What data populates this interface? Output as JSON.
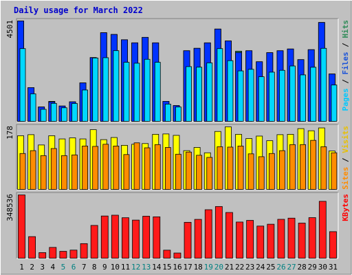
{
  "title": "Daily usage for March 2022",
  "legend": {
    "panel1": [
      {
        "label": "Pages",
        "color": "#00c8ff"
      },
      {
        "sep": " / ",
        "color": "#000000"
      },
      {
        "label": "Files",
        "color": "#1a53d9"
      },
      {
        "sep": " / ",
        "color": "#000000"
      },
      {
        "label": "Hits",
        "color": "#2e8b57"
      }
    ],
    "panel2": [
      {
        "label": "Sites",
        "color": "#ff8c00"
      },
      {
        "sep": " / ",
        "color": "#000000"
      },
      {
        "label": "Visits",
        "color": "#e8c000"
      }
    ],
    "panel3": [
      {
        "label": "KBytes",
        "color": "#ff0000"
      }
    ]
  },
  "colors": {
    "page_bg": "#c0c0c0",
    "plot_bg": "#c0c0c0",
    "hits": "#2e8b57",
    "files": "#0033ff",
    "pages": "#00d8ff",
    "visits": "#ffff00",
    "sites": "#ff8c00",
    "kbytes": "#ff1a1a",
    "weekend_label": "#008080",
    "weekday_label": "#000000",
    "title": "#0000cc"
  },
  "chart_data": [
    {
      "type": "bar",
      "panel": "hits-files-pages",
      "ymax_label": "4501",
      "ymax": 4501,
      "categories": [
        "1",
        "2",
        "3",
        "4",
        "5",
        "6",
        "7",
        "8",
        "9",
        "10",
        "11",
        "12",
        "13",
        "14",
        "15",
        "16",
        "17",
        "18",
        "19",
        "20",
        "21",
        "22",
        "23",
        "24",
        "25",
        "26",
        "27",
        "28",
        "29",
        "30",
        "31"
      ],
      "weekend_days": [
        "5",
        "6",
        "12",
        "13",
        "19",
        "20",
        "26",
        "27"
      ],
      "series": [
        {
          "name": "Hits",
          "values": [
            4501,
            1533,
            671,
            921,
            713,
            900,
            1743,
            2871,
            3978,
            3900,
            3664,
            3527,
            3771,
            3527,
            921,
            733,
            3176,
            3284,
            3527,
            4141,
            3612,
            3156,
            3176,
            2686,
            3089,
            3176,
            3253,
            2779,
            3223,
            4434,
            2140
          ]
        },
        {
          "name": "Files",
          "values": [
            4501,
            1533,
            671,
            896,
            713,
            900,
            1743,
            2871,
            3978,
            3900,
            3664,
            3527,
            3771,
            3527,
            921,
            733,
            3176,
            3284,
            3527,
            4141,
            3612,
            3096,
            3176,
            2686,
            3089,
            3176,
            3253,
            2779,
            3223,
            4434,
            2140
          ]
        },
        {
          "name": "Pages",
          "values": [
            3270,
            1256,
            567,
            831,
            636,
            826,
            1426,
            2853,
            2865,
            3179,
            2661,
            2620,
            2794,
            2661,
            799,
            671,
            2468,
            2444,
            2635,
            3270,
            2734,
            2278,
            2348,
            2018,
            2222,
            2304,
            2496,
            2100,
            2440,
            3283,
            1650
          ]
        }
      ]
    },
    {
      "type": "bar",
      "panel": "visits-sites",
      "ymax_label": "178",
      "ymax": 178,
      "categories": [
        "1",
        "2",
        "3",
        "4",
        "5",
        "6",
        "7",
        "8",
        "9",
        "10",
        "11",
        "12",
        "13",
        "14",
        "15",
        "16",
        "17",
        "18",
        "19",
        "20",
        "21",
        "22",
        "23",
        "24",
        "25",
        "26",
        "27",
        "28",
        "29",
        "30",
        "31"
      ],
      "series": [
        {
          "name": "Visits",
          "values": [
            153,
            156,
            127,
            153,
            144,
            147,
            144,
            170,
            142,
            148,
            126,
            129,
            131,
            157,
            158,
            154,
            111,
            120,
            105,
            165,
            178,
            157,
            145,
            152,
            139,
            156,
            157,
            173,
            167,
            175,
            110
          ]
        },
        {
          "name": "Sites",
          "values": [
            103,
            111,
            97,
            117,
            97,
            99,
            124,
            123,
            129,
            124,
            100,
            133,
            119,
            128,
            120,
            101,
            107,
            98,
            92,
            122,
            121,
            124,
            102,
            94,
            103,
            111,
            128,
            128,
            140,
            122,
            105
          ]
        }
      ]
    },
    {
      "type": "bar",
      "panel": "kbytes",
      "ymax_label": "348536",
      "ymax": 348536,
      "categories": [
        "1",
        "2",
        "3",
        "4",
        "5",
        "6",
        "7",
        "8",
        "9",
        "10",
        "11",
        "12",
        "13",
        "14",
        "15",
        "16",
        "17",
        "18",
        "19",
        "20",
        "21",
        "22",
        "23",
        "24",
        "25",
        "26",
        "27",
        "28",
        "29",
        "30",
        "31"
      ],
      "series": [
        {
          "name": "KBytes",
          "values": [
            348536,
            121200,
            34000,
            62400,
            41000,
            47700,
            83000,
            182200,
            233600,
            238000,
            224200,
            211300,
            232500,
            229100,
            47300,
            31800,
            199200,
            215200,
            267900,
            285300,
            252800,
            200700,
            209700,
            178700,
            188800,
            215500,
            221900,
            194900,
            224700,
            313600,
            148300
          ]
        }
      ]
    }
  ]
}
